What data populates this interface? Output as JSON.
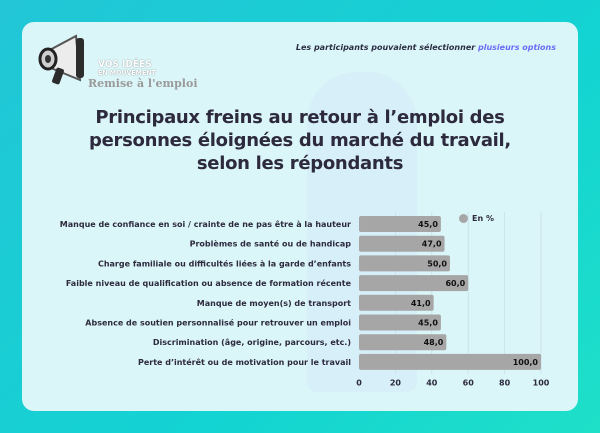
{
  "brand": {
    "logo_line1": "VOS IDÉES",
    "logo_line2": "EN MOUVEMENT",
    "section": "Remise à l'emploi"
  },
  "note": {
    "text": "Les participants pouvaient sélectionner ",
    "highlight": "plusieurs options",
    "highlight_color": "#6b6cf5"
  },
  "chart_data": {
    "type": "bar",
    "orientation": "horizontal",
    "title": "Principaux freins au retour à l’emploi des personnes éloignées du marché du travail, selon les répondants",
    "legend": {
      "label": "En %",
      "position": "top-right"
    },
    "categories": [
      "Manque de confiance en soi / crainte de ne pas être à la hauteur",
      "Problèmes de santé ou de handicap",
      "Charge familiale ou difficultés liées à la garde d’enfants",
      "Faible niveau de qualification ou absence de formation récente",
      "Manque de moyen(s) de transport",
      "Absence de soutien personnalisé pour retrouver un emploi",
      "Discrimination (âge, origine, parcours, etc.)",
      "Perte d’intérêt ou de motivation pour le travail"
    ],
    "values": [
      45,
      47,
      50,
      60,
      41,
      45,
      48,
      100
    ],
    "value_labels": [
      "45,0",
      "47,0",
      "50,0",
      "60,0",
      "41,0",
      "45,0",
      "48,0",
      "100,0"
    ],
    "xlim": [
      0,
      100
    ],
    "xticks": [
      "0",
      "20",
      "40",
      "60",
      "80",
      "100"
    ],
    "grid": true,
    "bar_color": "#a6a6a6"
  }
}
